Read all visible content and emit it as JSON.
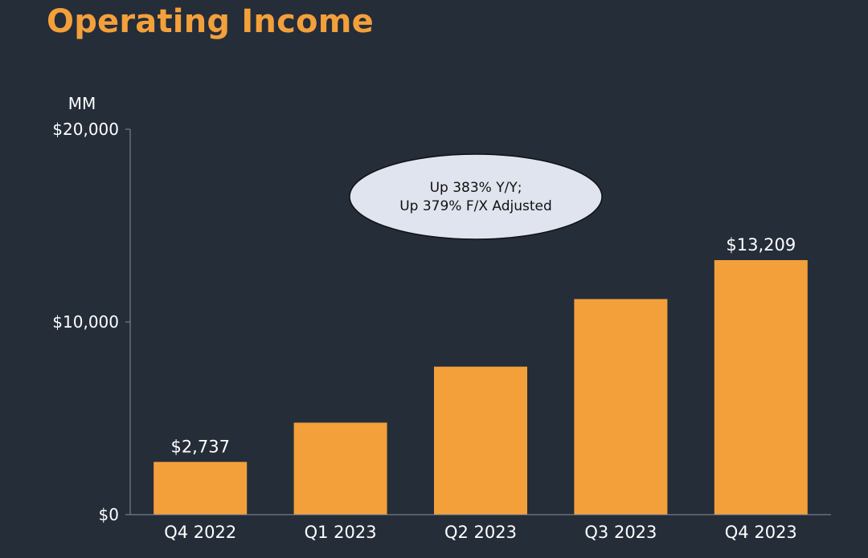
{
  "title": "Operating Income",
  "chart_data": {
    "type": "bar",
    "categories": [
      "Q4 2022",
      "Q1 2023",
      "Q2 2023",
      "Q3 2023",
      "Q4 2023"
    ],
    "values": [
      2737,
      4774,
      7681,
      11188,
      13209
    ],
    "data_labels": [
      "$2,737",
      "",
      "",
      "",
      "$13,209"
    ],
    "unit_label": "MM",
    "yticks": [
      0,
      10000,
      20000
    ],
    "ytick_labels": [
      "$0",
      "$10,000",
      "$20,000"
    ],
    "ylim": [
      0,
      20000
    ],
    "bar_color": "#f3a03b",
    "grid": false,
    "annotation": {
      "lines": [
        "Up 383% Y/Y;",
        "Up 379% F/X Adjusted"
      ]
    }
  }
}
